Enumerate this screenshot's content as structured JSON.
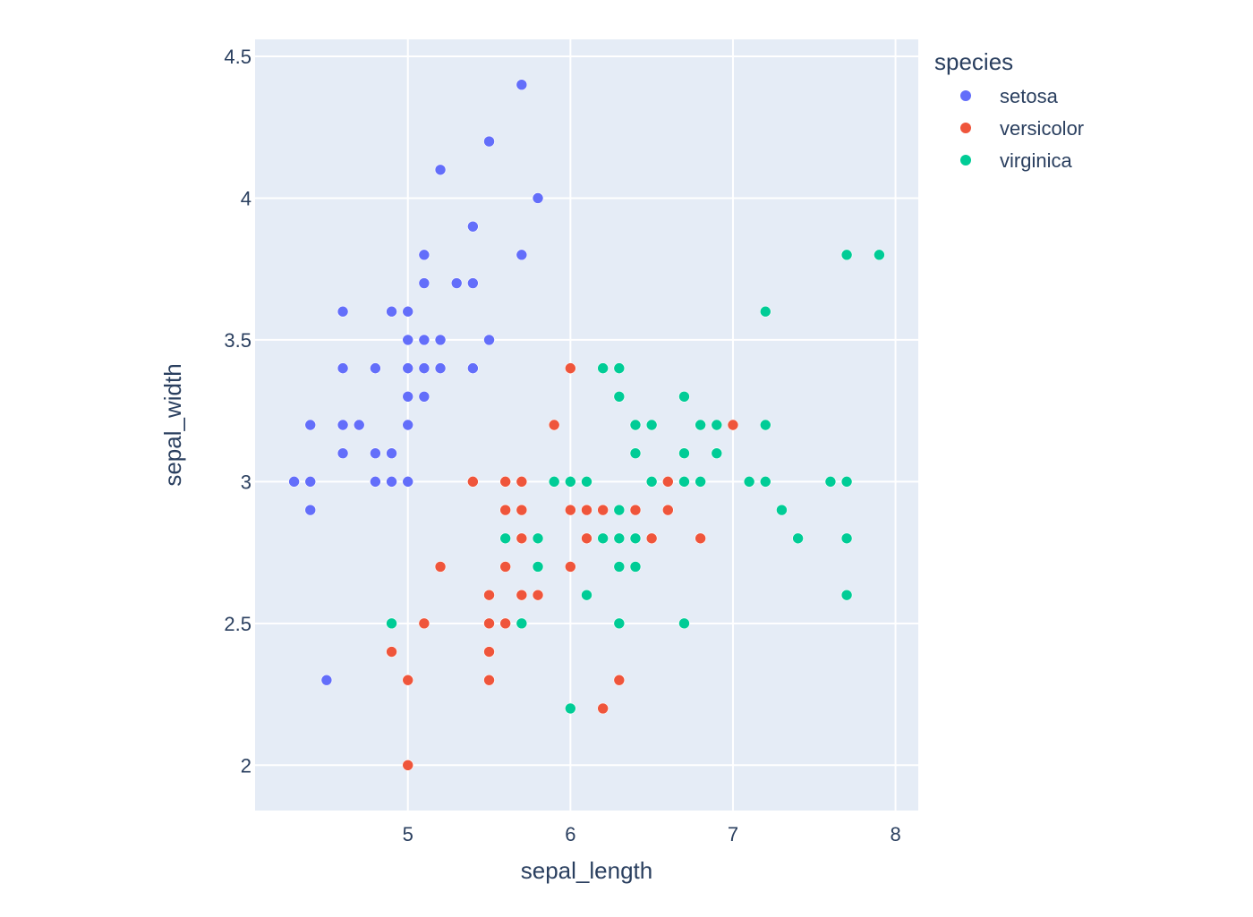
{
  "chart_data": {
    "type": "scatter",
    "title": "",
    "xlabel": "sepal_length",
    "ylabel": "sepal_width",
    "xlim": [
      4.06,
      8.14
    ],
    "ylim": [
      1.84,
      4.56
    ],
    "xticks": [
      5,
      6,
      7,
      8
    ],
    "yticks": [
      2,
      2.5,
      3,
      3.5,
      4,
      4.5
    ],
    "grid": true,
    "background": "#e5ecf6",
    "legend": {
      "title": "species",
      "placement": "right"
    },
    "series": [
      {
        "name": "setosa",
        "color": "#636efa",
        "points": [
          [
            5.1,
            3.5
          ],
          [
            4.9,
            3.0
          ],
          [
            4.7,
            3.2
          ],
          [
            4.6,
            3.1
          ],
          [
            5.0,
            3.6
          ],
          [
            5.4,
            3.9
          ],
          [
            4.6,
            3.4
          ],
          [
            5.0,
            3.4
          ],
          [
            4.4,
            2.9
          ],
          [
            4.9,
            3.1
          ],
          [
            5.4,
            3.7
          ],
          [
            4.8,
            3.4
          ],
          [
            4.8,
            3.0
          ],
          [
            4.3,
            3.0
          ],
          [
            5.8,
            4.0
          ],
          [
            5.7,
            4.4
          ],
          [
            5.4,
            3.9
          ],
          [
            5.1,
            3.5
          ],
          [
            5.7,
            3.8
          ],
          [
            5.1,
            3.8
          ],
          [
            5.4,
            3.4
          ],
          [
            5.1,
            3.7
          ],
          [
            4.6,
            3.6
          ],
          [
            5.1,
            3.3
          ],
          [
            4.8,
            3.4
          ],
          [
            5.0,
            3.0
          ],
          [
            5.0,
            3.4
          ],
          [
            5.2,
            3.5
          ],
          [
            5.2,
            3.4
          ],
          [
            4.7,
            3.2
          ],
          [
            4.8,
            3.1
          ],
          [
            5.4,
            3.4
          ],
          [
            5.2,
            4.1
          ],
          [
            5.5,
            4.2
          ],
          [
            4.9,
            3.1
          ],
          [
            5.0,
            3.2
          ],
          [
            5.5,
            3.5
          ],
          [
            4.9,
            3.6
          ],
          [
            4.4,
            3.0
          ],
          [
            5.1,
            3.4
          ],
          [
            5.0,
            3.5
          ],
          [
            4.5,
            2.3
          ],
          [
            4.4,
            3.2
          ],
          [
            5.0,
            3.5
          ],
          [
            5.1,
            3.8
          ],
          [
            4.8,
            3.0
          ],
          [
            5.1,
            3.8
          ],
          [
            4.6,
            3.2
          ],
          [
            5.3,
            3.7
          ],
          [
            5.0,
            3.3
          ]
        ]
      },
      {
        "name": "versicolor",
        "color": "#ef553b",
        "points": [
          [
            7.0,
            3.2
          ],
          [
            6.4,
            3.2
          ],
          [
            6.9,
            3.1
          ],
          [
            5.5,
            2.3
          ],
          [
            6.5,
            2.8
          ],
          [
            5.7,
            2.8
          ],
          [
            6.3,
            3.3
          ],
          [
            4.9,
            2.4
          ],
          [
            6.6,
            2.9
          ],
          [
            5.2,
            2.7
          ],
          [
            5.0,
            2.0
          ],
          [
            5.9,
            3.0
          ],
          [
            6.0,
            2.2
          ],
          [
            6.1,
            2.9
          ],
          [
            5.6,
            2.9
          ],
          [
            6.7,
            3.1
          ],
          [
            5.6,
            3.0
          ],
          [
            5.8,
            2.7
          ],
          [
            6.2,
            2.2
          ],
          [
            5.6,
            2.5
          ],
          [
            5.9,
            3.2
          ],
          [
            6.1,
            2.8
          ],
          [
            6.3,
            2.5
          ],
          [
            6.1,
            2.8
          ],
          [
            6.4,
            2.9
          ],
          [
            6.6,
            3.0
          ],
          [
            6.8,
            2.8
          ],
          [
            6.7,
            3.0
          ],
          [
            6.0,
            2.9
          ],
          [
            5.7,
            2.6
          ],
          [
            5.5,
            2.4
          ],
          [
            5.5,
            2.4
          ],
          [
            5.8,
            2.7
          ],
          [
            6.0,
            2.7
          ],
          [
            5.4,
            3.0
          ],
          [
            6.0,
            3.4
          ],
          [
            6.7,
            3.1
          ],
          [
            6.3,
            2.3
          ],
          [
            5.6,
            3.0
          ],
          [
            5.5,
            2.5
          ],
          [
            5.5,
            2.6
          ],
          [
            6.1,
            3.0
          ],
          [
            5.8,
            2.6
          ],
          [
            5.0,
            2.3
          ],
          [
            5.6,
            2.7
          ],
          [
            5.7,
            3.0
          ],
          [
            5.7,
            2.9
          ],
          [
            6.2,
            2.9
          ],
          [
            5.1,
            2.5
          ],
          [
            5.7,
            2.8
          ]
        ]
      },
      {
        "name": "virginica",
        "color": "#00cc96",
        "points": [
          [
            6.3,
            3.3
          ],
          [
            5.8,
            2.7
          ],
          [
            7.1,
            3.0
          ],
          [
            6.3,
            2.9
          ],
          [
            6.5,
            3.0
          ],
          [
            7.6,
            3.0
          ],
          [
            4.9,
            2.5
          ],
          [
            7.3,
            2.9
          ],
          [
            6.7,
            2.5
          ],
          [
            7.2,
            3.6
          ],
          [
            6.5,
            3.2
          ],
          [
            6.4,
            2.7
          ],
          [
            6.8,
            3.0
          ],
          [
            5.7,
            2.5
          ],
          [
            5.8,
            2.8
          ],
          [
            6.4,
            3.2
          ],
          [
            6.5,
            3.0
          ],
          [
            7.7,
            3.8
          ],
          [
            7.7,
            2.6
          ],
          [
            6.0,
            2.2
          ],
          [
            6.9,
            3.2
          ],
          [
            5.6,
            2.8
          ],
          [
            7.7,
            2.8
          ],
          [
            6.3,
            2.7
          ],
          [
            6.7,
            3.3
          ],
          [
            7.2,
            3.2
          ],
          [
            6.2,
            2.8
          ],
          [
            6.1,
            3.0
          ],
          [
            6.4,
            2.8
          ],
          [
            7.2,
            3.0
          ],
          [
            7.4,
            2.8
          ],
          [
            7.9,
            3.8
          ],
          [
            6.4,
            2.8
          ],
          [
            6.3,
            2.8
          ],
          [
            6.1,
            2.6
          ],
          [
            7.7,
            3.0
          ],
          [
            6.3,
            3.4
          ],
          [
            6.4,
            3.1
          ],
          [
            6.0,
            3.0
          ],
          [
            6.9,
            3.1
          ],
          [
            6.7,
            3.1
          ],
          [
            6.9,
            3.1
          ],
          [
            5.8,
            2.7
          ],
          [
            6.8,
            3.2
          ],
          [
            6.7,
            3.3
          ],
          [
            6.7,
            3.0
          ],
          [
            6.3,
            2.5
          ],
          [
            6.5,
            3.0
          ],
          [
            6.2,
            3.4
          ],
          [
            5.9,
            3.0
          ]
        ]
      }
    ]
  }
}
